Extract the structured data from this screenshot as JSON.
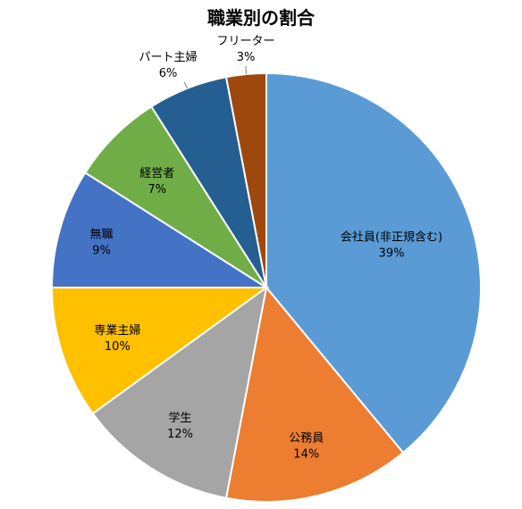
{
  "chart_data": {
    "type": "pie",
    "title": "職業別の割合",
    "slices": [
      {
        "name": "会社員(非正規含む)",
        "value": 39,
        "value_label": "39%",
        "color": "#5B9BD5"
      },
      {
        "name": "公務員",
        "value": 14,
        "value_label": "14%",
        "color": "#ED7D31"
      },
      {
        "name": "学生",
        "value": 12,
        "value_label": "12%",
        "color": "#A5A5A5"
      },
      {
        "name": "専業主婦",
        "value": 10,
        "value_label": "10%",
        "color": "#FFC000"
      },
      {
        "name": "無職",
        "value": 9,
        "value_label": "9%",
        "color": "#4472C4"
      },
      {
        "name": "経営者",
        "value": 7,
        "value_label": "7%",
        "color": "#70AD47"
      },
      {
        "name": "パート主婦",
        "value": 6,
        "value_label": "6%",
        "color": "#255E91"
      },
      {
        "name": "フリーター",
        "value": 3,
        "value_label": "3%",
        "color": "#9E480E"
      }
    ],
    "start": "12 o'clock",
    "direction": "clockwise",
    "legend": "none",
    "label_placement": "inside, except small slices outside with leader lines"
  }
}
